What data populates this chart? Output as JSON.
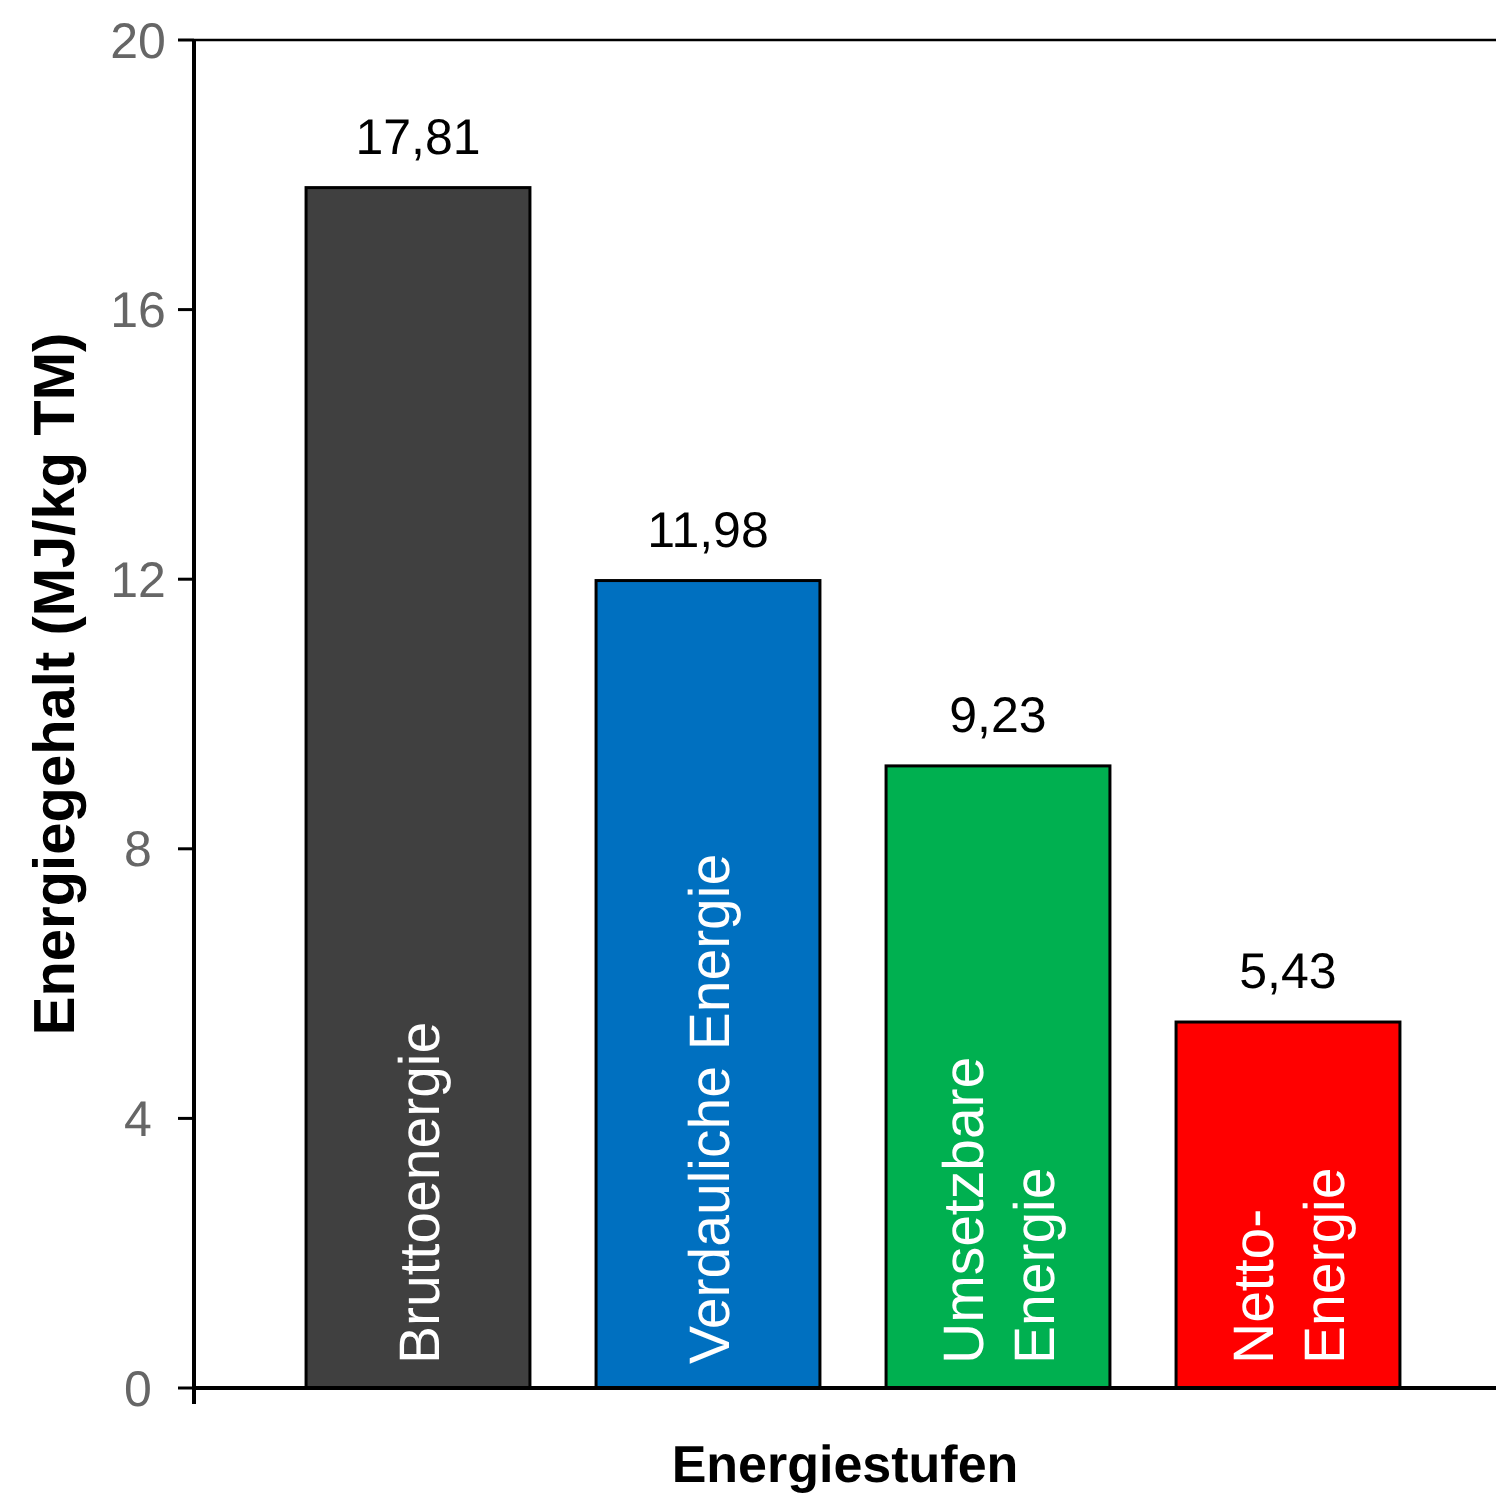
{
  "chart_data": {
    "type": "bar",
    "xlabel": "Energiestufen",
    "ylabel": "Energiegehalt (MJ/kg TM)",
    "categories": [
      "Bruttoenergie",
      "Verdauliche Energie",
      "Umsetzbare Energie",
      "Netto-Energie"
    ],
    "values": [
      17.81,
      11.98,
      9.23,
      5.43
    ],
    "colors": [
      "#404040",
      "#0070c0",
      "#00b050",
      "#ff0000"
    ],
    "value_labels": [
      "17,81",
      "11,98",
      "9,23",
      "5,43"
    ],
    "ylim": [
      0,
      20
    ],
    "yticks": [
      0,
      4,
      8,
      12,
      16,
      20
    ]
  }
}
